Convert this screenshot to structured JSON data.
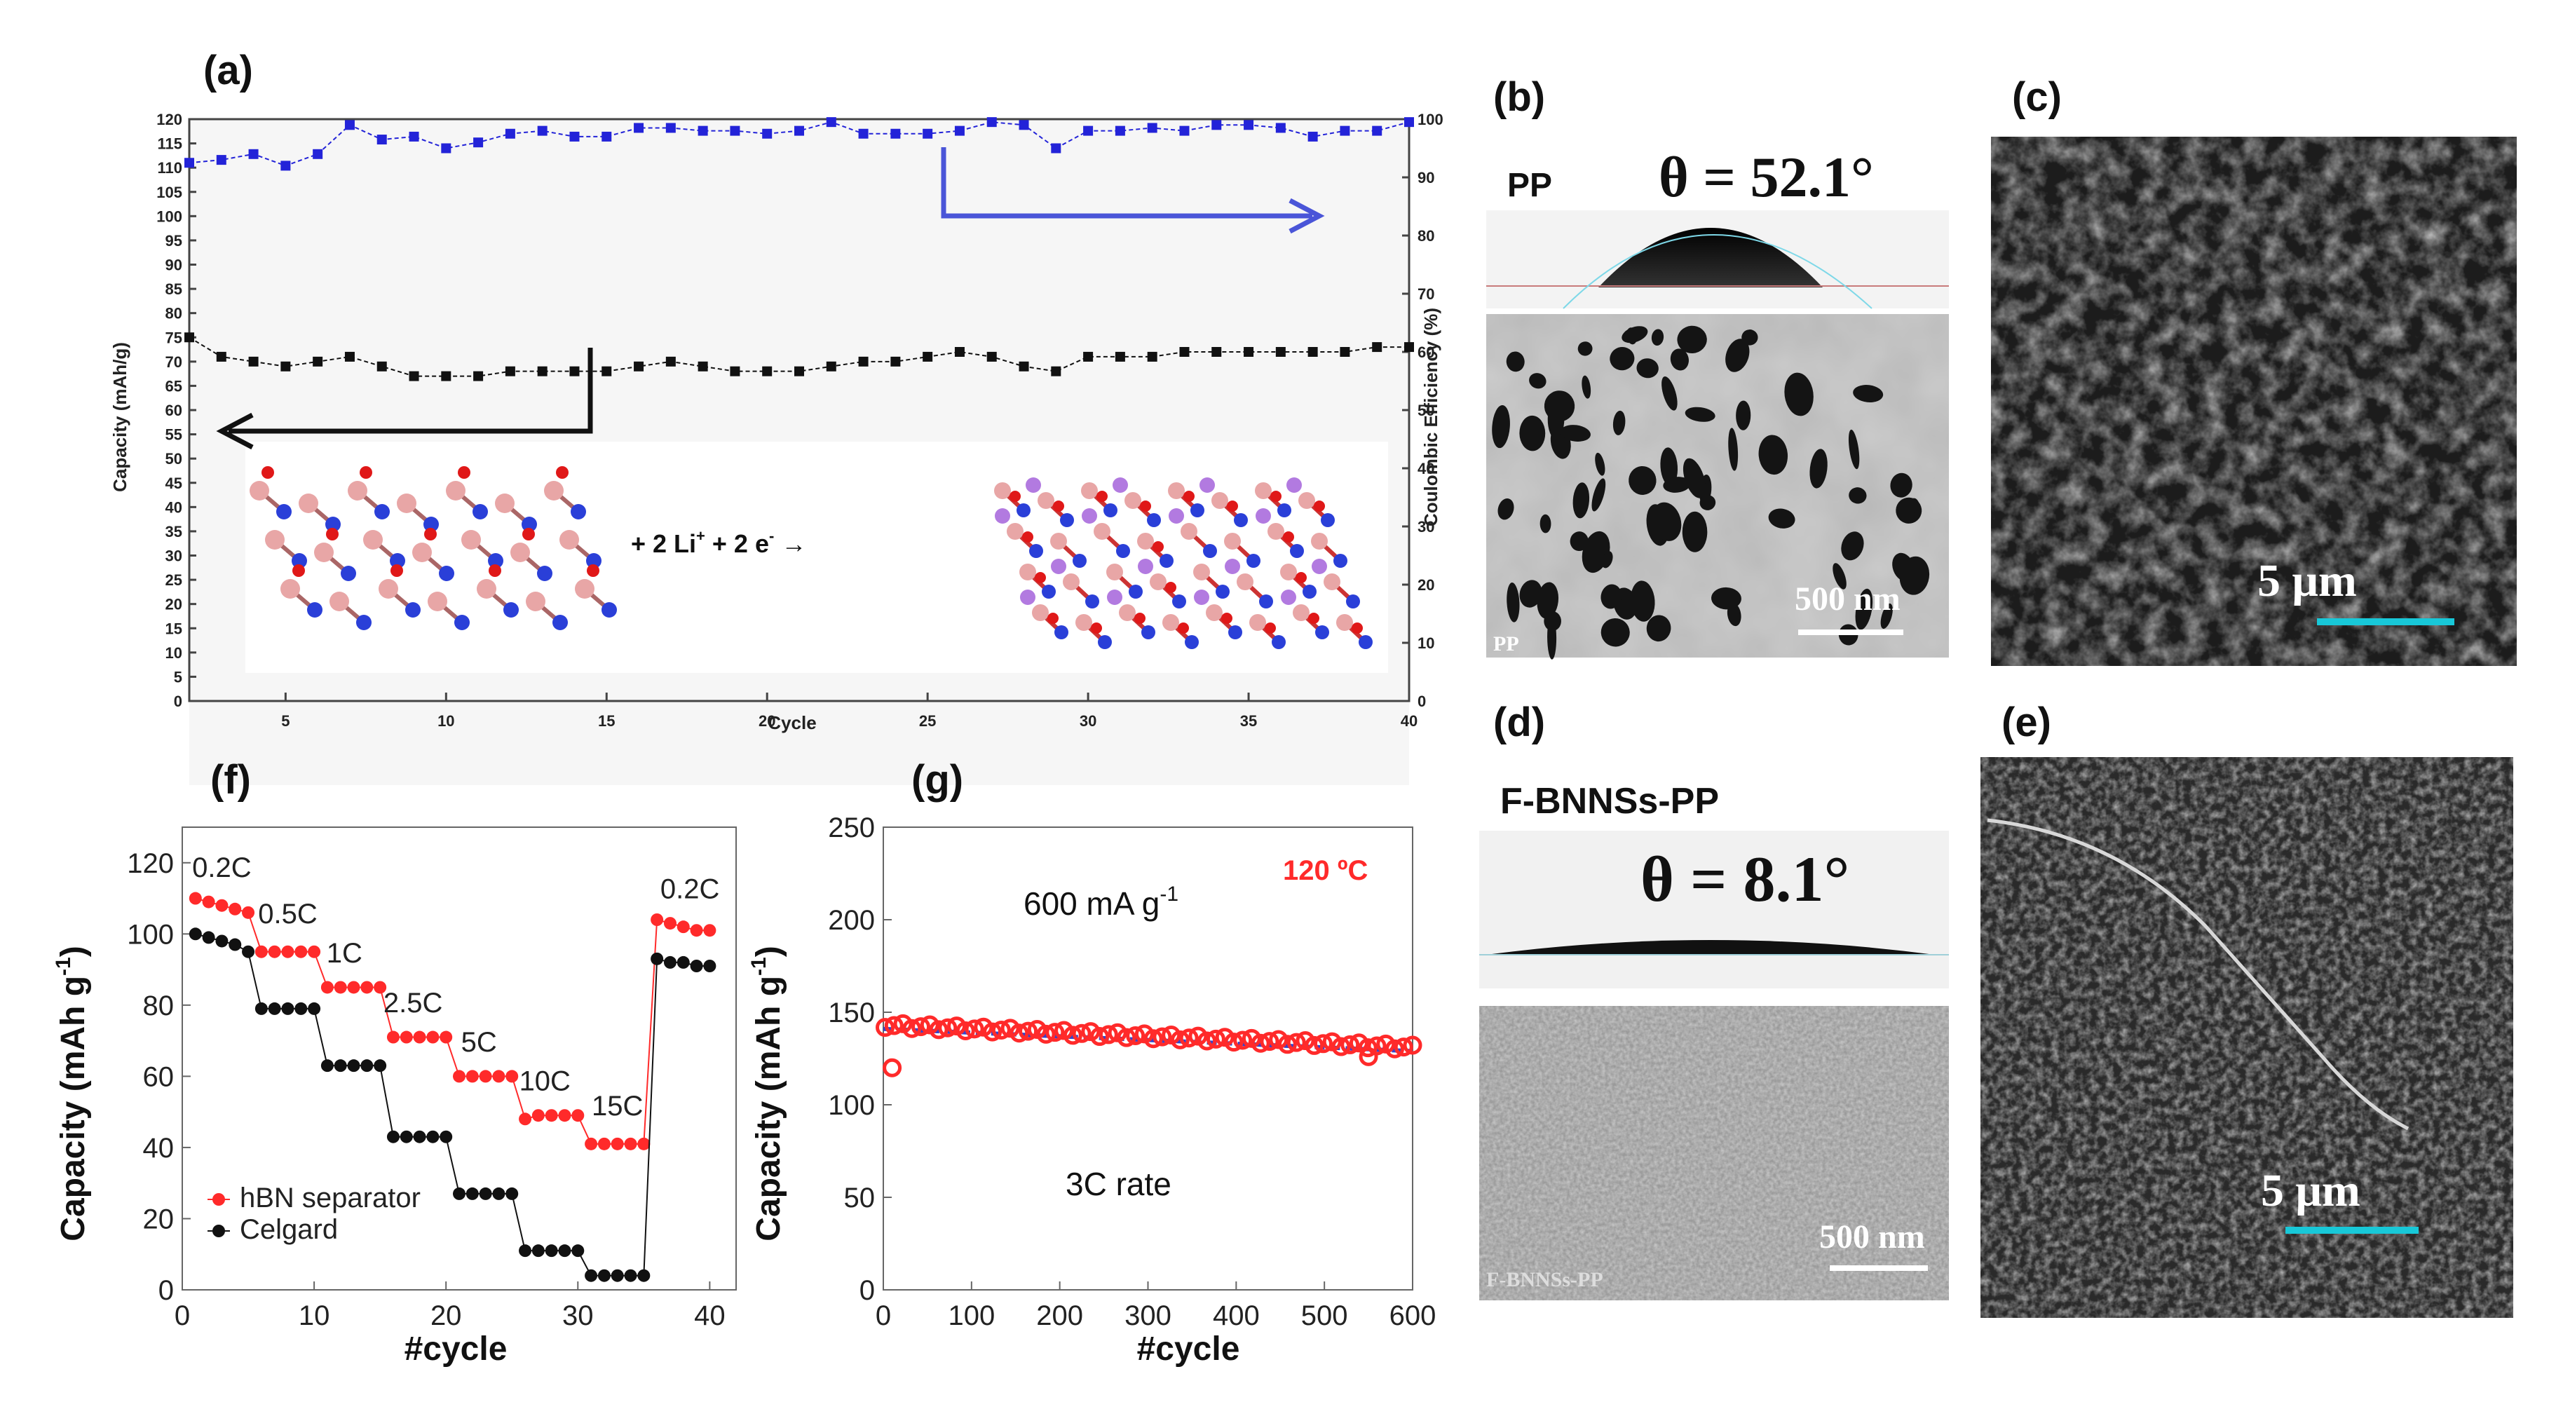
{
  "panel_labels": {
    "a": "(a)",
    "b": "(b)",
    "c": "(c)",
    "d": "(d)",
    "e": "(e)",
    "f": "(f)",
    "g": "(g)"
  },
  "colors": {
    "blue": "#2323d8",
    "black": "#111111",
    "red": "#ff2a2a",
    "cyan": "#18c8d8",
    "arrow_blue": "#4a55d8"
  },
  "chart_data": [
    {
      "id": "a",
      "type": "scatter",
      "title": "",
      "xlabel": "Cycle",
      "ylabel": "Capacity (mAh/g)",
      "y2label": "Coulombic Efficiency (%)",
      "xlim": [
        2,
        40
      ],
      "ylim": [
        0,
        120
      ],
      "y2lim": [
        0,
        100
      ],
      "xticks": [
        5,
        10,
        15,
        20,
        25,
        30,
        35,
        40
      ],
      "yticks": [
        0,
        5,
        10,
        15,
        20,
        25,
        30,
        35,
        40,
        45,
        50,
        55,
        60,
        65,
        70,
        75,
        80,
        85,
        90,
        95,
        100,
        105,
        110,
        115,
        120
      ],
      "y2ticks": [
        0,
        10,
        20,
        30,
        40,
        50,
        60,
        70,
        80,
        90,
        100
      ],
      "series": [
        {
          "name": "Capacity",
          "axis": "left",
          "x": [
            2,
            3,
            4,
            5,
            6,
            7,
            8,
            9,
            10,
            11,
            12,
            13,
            14,
            15,
            16,
            17,
            18,
            19,
            20,
            21,
            22,
            23,
            24,
            25,
            26,
            27,
            28,
            29,
            30,
            31,
            32,
            33,
            34,
            35,
            36,
            37,
            38,
            39,
            40
          ],
          "values": [
            75,
            71,
            70,
            69,
            70,
            71,
            69,
            67,
            67,
            67,
            68,
            68,
            68,
            68,
            69,
            70,
            69,
            68,
            68,
            68,
            69,
            70,
            70,
            71,
            72,
            71,
            69,
            68,
            71,
            71,
            71,
            72,
            72,
            72,
            72,
            72,
            72,
            73,
            73
          ]
        },
        {
          "name": "Coulombic Efficiency",
          "axis": "right",
          "x": [
            2,
            3,
            4,
            5,
            6,
            7,
            8,
            9,
            10,
            11,
            12,
            13,
            14,
            15,
            16,
            17,
            18,
            19,
            20,
            21,
            22,
            23,
            24,
            25,
            26,
            27,
            28,
            29,
            30,
            31,
            32,
            33,
            34,
            35,
            36,
            37,
            38,
            39,
            40
          ],
          "values": [
            92.5,
            93,
            94,
            92,
            94,
            99,
            96.5,
            97,
            95,
            96,
            97.5,
            98,
            97,
            97,
            98.5,
            98.5,
            98,
            98,
            97.5,
            98,
            99.5,
            97.5,
            97.5,
            97.5,
            98,
            99.5,
            99,
            95,
            98,
            98,
            98.5,
            98,
            99,
            99,
            98.5,
            97,
            98,
            98,
            99.5
          ]
        }
      ],
      "equation": {
        "lhs": "+ 2 Li",
        "sup1": "+",
        "mid": " + 2 e",
        "sup2": "-",
        "arrow": " →"
      }
    },
    {
      "id": "f",
      "type": "scatter",
      "xlabel": "#cycle",
      "ylabel": "Capacity (mAh g",
      "ylabel_sup": "-1",
      "ylabel_end": ")",
      "xlim": [
        0,
        42
      ],
      "ylim": [
        0,
        130
      ],
      "xticks": [
        0,
        10,
        20,
        30,
        40
      ],
      "yticks": [
        0,
        20,
        40,
        60,
        80,
        100,
        120
      ],
      "rate_labels": [
        {
          "text": "0.2C",
          "x": 3,
          "y": 116
        },
        {
          "text": "0.5C",
          "x": 8,
          "y": 103
        },
        {
          "text": "1C",
          "x": 12.3,
          "y": 92
        },
        {
          "text": "2.5C",
          "x": 17.5,
          "y": 78
        },
        {
          "text": "5C",
          "x": 22.5,
          "y": 67
        },
        {
          "text": "10C",
          "x": 27.5,
          "y": 56
        },
        {
          "text": "15C",
          "x": 33,
          "y": 49
        },
        {
          "text": "0.2C",
          "x": 38.5,
          "y": 110
        }
      ],
      "series": [
        {
          "name": "hBN separator",
          "color": "red",
          "x": [
            1,
            2,
            3,
            4,
            5,
            6,
            7,
            8,
            9,
            10,
            11,
            12,
            13,
            14,
            15,
            16,
            17,
            18,
            19,
            20,
            21,
            22,
            23,
            24,
            25,
            26,
            27,
            28,
            29,
            30,
            31,
            32,
            33,
            34,
            35,
            36,
            37,
            38,
            39,
            40
          ],
          "values": [
            110,
            109,
            108,
            107,
            106,
            95,
            95,
            95,
            95,
            95,
            85,
            85,
            85,
            85,
            85,
            71,
            71,
            71,
            71,
            71,
            60,
            60,
            60,
            60,
            60,
            48,
            49,
            49,
            49,
            49,
            41,
            41,
            41,
            41,
            41,
            104,
            103,
            102,
            101,
            101
          ]
        },
        {
          "name": "Celgard",
          "color": "black",
          "x": [
            1,
            2,
            3,
            4,
            5,
            6,
            7,
            8,
            9,
            10,
            11,
            12,
            13,
            14,
            15,
            16,
            17,
            18,
            19,
            20,
            21,
            22,
            23,
            24,
            25,
            26,
            27,
            28,
            29,
            30,
            31,
            32,
            33,
            34,
            35,
            36,
            37,
            38,
            39,
            40
          ],
          "values": [
            100,
            99,
            98,
            97,
            95,
            79,
            79,
            79,
            79,
            79,
            63,
            63,
            63,
            63,
            63,
            43,
            43,
            43,
            43,
            43,
            27,
            27,
            27,
            27,
            27,
            11,
            11,
            11,
            11,
            11,
            4,
            4,
            4,
            4,
            4,
            93,
            92,
            92,
            91,
            91
          ]
        }
      ]
    },
    {
      "id": "g",
      "type": "scatter",
      "xlabel": "#cycle",
      "ylabel": "Capacity (mAh g",
      "ylabel_sup": "-1",
      "ylabel_end": ")",
      "xlim": [
        0,
        600
      ],
      "ylim": [
        0,
        250
      ],
      "xticks": [
        0,
        100,
        200,
        300,
        400,
        500,
        600
      ],
      "yticks": [
        0,
        50,
        100,
        150,
        200,
        250
      ],
      "current_label": "600 mA g",
      "current_sup": "-1",
      "temp_label": "120 ºC",
      "rate_label": "3C rate",
      "series": [
        {
          "name": "Capacity",
          "color": "red",
          "start": 143,
          "end": 131,
          "n": 60,
          "outliers": [
            {
              "x": 10,
              "y": 120
            },
            {
              "x": 550,
              "y": 126
            }
          ]
        }
      ]
    }
  ],
  "panel_b": {
    "material": "PP",
    "angle": "θ = 52.1°",
    "scale": "500 nm",
    "watermark": "PP"
  },
  "panel_c": {
    "scale": "5 μm"
  },
  "panel_d": {
    "material": "F-BNNSs-PP",
    "angle": "θ = 8.1°",
    "scale": "500 nm",
    "watermark": "F-BNNSs-PP"
  },
  "panel_e": {
    "scale": "5 μm"
  }
}
